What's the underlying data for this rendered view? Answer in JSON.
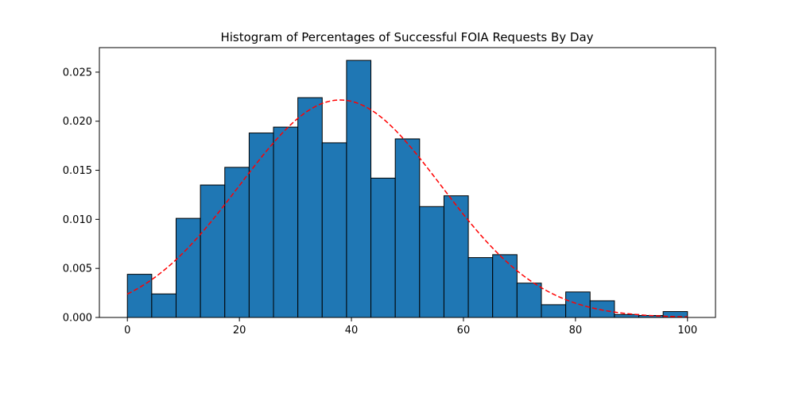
{
  "chart_data": {
    "type": "bar",
    "title": "Histogram of Percentages of Successful FOIA Requests By Day",
    "xlabel": "",
    "ylabel": "",
    "xlim": [
      -5,
      105
    ],
    "ylim": [
      0,
      0.0275
    ],
    "x_ticks": [
      0,
      20,
      40,
      60,
      80,
      100
    ],
    "y_ticks": [
      0.0,
      0.005,
      0.01,
      0.015,
      0.02,
      0.025
    ],
    "x_tick_labels": [
      "0",
      "20",
      "40",
      "60",
      "80",
      "100"
    ],
    "y_tick_labels": [
      "0.000",
      "0.005",
      "0.010",
      "0.015",
      "0.020",
      "0.025"
    ],
    "grid": false,
    "legend": null,
    "bin_edges": [
      0,
      4.348,
      8.696,
      13.043,
      17.391,
      21.739,
      26.087,
      30.435,
      34.783,
      39.13,
      43.478,
      47.826,
      52.174,
      56.522,
      60.87,
      65.217,
      69.565,
      73.913,
      78.261,
      82.609,
      86.957,
      91.304,
      95.652,
      100
    ],
    "values": [
      0.0044,
      0.0024,
      0.0101,
      0.0135,
      0.0153,
      0.0188,
      0.0194,
      0.0224,
      0.0178,
      0.0262,
      0.0142,
      0.0182,
      0.0113,
      0.0124,
      0.0061,
      0.0064,
      0.0035,
      0.0013,
      0.0026,
      0.0017,
      0.0003,
      0.0002,
      0.0006
    ],
    "fit_curve": {
      "type": "normal",
      "mean": 38,
      "std": 18,
      "style": "dashed"
    },
    "colors": {
      "bar_fill": "#1f77b4",
      "bar_edge": "#000000",
      "curve": "#ff0000",
      "axes": "#000000"
    }
  }
}
